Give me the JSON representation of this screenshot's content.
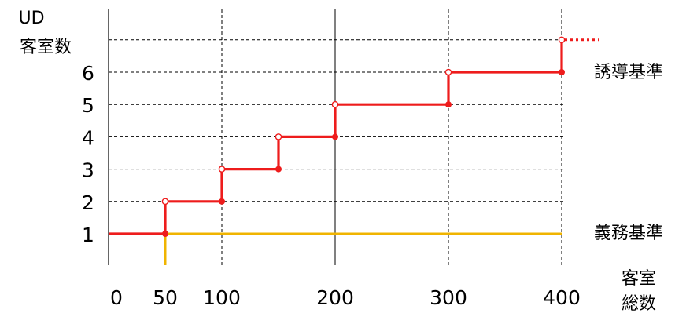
{
  "chart_data": {
    "type": "line",
    "y_axis_title": [
      "UD",
      "客室数"
    ],
    "x_axis_title": [
      "客室",
      "総数"
    ],
    "x_ticks": [
      "0",
      "50",
      "100",
      "200",
      "300",
      "400"
    ],
    "y_ticks": [
      "1",
      "2",
      "3",
      "4",
      "5",
      "6"
    ],
    "xlim": [
      0,
      400
    ],
    "ylim": [
      0,
      7
    ],
    "grid": true,
    "series": [
      {
        "name": "誘導基準",
        "color": "#ee1c1c",
        "style": "step",
        "steps": [
          {
            "x": 0,
            "y": 1
          },
          {
            "x": 50,
            "y": 2
          },
          {
            "x": 100,
            "y": 3
          },
          {
            "x": 150,
            "y": 4
          },
          {
            "x": 200,
            "y": 5
          },
          {
            "x": 300,
            "y": 6
          },
          {
            "x": 400,
            "y": 7
          }
        ],
        "continues_beyond": true
      },
      {
        "name": "義務基準",
        "color": "#f0b400",
        "style": "step",
        "steps": [
          {
            "x": 50,
            "y": 1
          },
          {
            "x": 400,
            "y": 1
          }
        ]
      }
    ]
  }
}
